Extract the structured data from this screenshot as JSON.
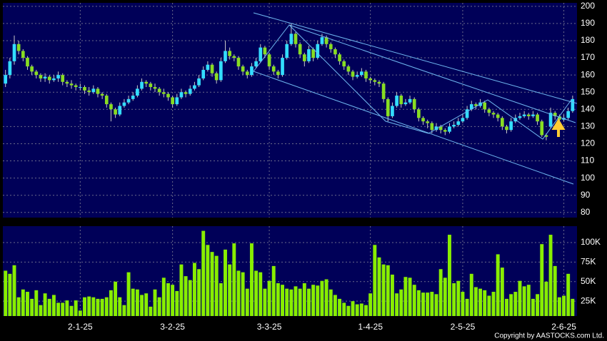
{
  "chart_data": [
    {
      "type": "candlestick",
      "up_color": "#33ddff",
      "down_color": "#88dd22",
      "wick_color": "#c8c8c8",
      "grid": true,
      "xlim": [
        -0.6,
        130
      ],
      "ylim": [
        77,
        202
      ],
      "yticks": [
        80,
        90,
        100,
        110,
        120,
        130,
        140,
        150,
        160,
        170,
        180,
        190,
        200
      ],
      "ohlc": [
        [
          155,
          163,
          153,
          160
        ],
        [
          160,
          170,
          158,
          168
        ],
        [
          168,
          183,
          166,
          178
        ],
        [
          178,
          180,
          172,
          174
        ],
        [
          174,
          175,
          168,
          170
        ],
        [
          170,
          171,
          163,
          165
        ],
        [
          165,
          166,
          160,
          162
        ],
        [
          162,
          163,
          158,
          160
        ],
        [
          160,
          161,
          156,
          158
        ],
        [
          158,
          161,
          156,
          159
        ],
        [
          159,
          160,
          155,
          157
        ],
        [
          157,
          160,
          156,
          158
        ],
        [
          158,
          162,
          156,
          160
        ],
        [
          160,
          161,
          154,
          156
        ],
        [
          156,
          157,
          153,
          155
        ],
        [
          155,
          157,
          152,
          154
        ],
        [
          154,
          155,
          151,
          153
        ],
        [
          153,
          155,
          151,
          153
        ],
        [
          153,
          154,
          149,
          151
        ],
        [
          151,
          153,
          148,
          150
        ],
        [
          150,
          154,
          149,
          152
        ],
        [
          152,
          153,
          147,
          149
        ],
        [
          149,
          150,
          146,
          148
        ],
        [
          148,
          149,
          141,
          143
        ],
        [
          143,
          144,
          133,
          140
        ],
        [
          140,
          141,
          135,
          137
        ],
        [
          137,
          144,
          136,
          142
        ],
        [
          142,
          146,
          141,
          144
        ],
        [
          144,
          148,
          143,
          146
        ],
        [
          146,
          150,
          145,
          148
        ],
        [
          148,
          154,
          147,
          152
        ],
        [
          152,
          158,
          151,
          156
        ],
        [
          156,
          157,
          153,
          155
        ],
        [
          155,
          156,
          151,
          153
        ],
        [
          153,
          155,
          150,
          152
        ],
        [
          152,
          153,
          148,
          150
        ],
        [
          150,
          152,
          147,
          149
        ],
        [
          149,
          150,
          145,
          147
        ],
        [
          147,
          148,
          141,
          143
        ],
        [
          143,
          149,
          142,
          147
        ],
        [
          147,
          152,
          146,
          150
        ],
        [
          150,
          151,
          147,
          149
        ],
        [
          149,
          154,
          148,
          152
        ],
        [
          152,
          156,
          151,
          154
        ],
        [
          154,
          160,
          153,
          158
        ],
        [
          158,
          165,
          157,
          163
        ],
        [
          163,
          168,
          162,
          166
        ],
        [
          166,
          167,
          159,
          161
        ],
        [
          161,
          162,
          155,
          157
        ],
        [
          157,
          170,
          156,
          168
        ],
        [
          168,
          180,
          167,
          174
        ],
        [
          174,
          176,
          169,
          171
        ],
        [
          171,
          172,
          168,
          170
        ],
        [
          170,
          171,
          163,
          165
        ],
        [
          165,
          166,
          160,
          162
        ],
        [
          162,
          163,
          158,
          160
        ],
        [
          160,
          167,
          159,
          165
        ],
        [
          165,
          170,
          164,
          168
        ],
        [
          168,
          178,
          167,
          176
        ],
        [
          176,
          177,
          170,
          172
        ],
        [
          172,
          173,
          163,
          165
        ],
        [
          165,
          166,
          160,
          162
        ],
        [
          162,
          163,
          158,
          160
        ],
        [
          160,
          172,
          159,
          170
        ],
        [
          170,
          180,
          169,
          178
        ],
        [
          178,
          190,
          177,
          184
        ],
        [
          184,
          185,
          176,
          178
        ],
        [
          178,
          179,
          170,
          172
        ],
        [
          172,
          173,
          165,
          168
        ],
        [
          168,
          177,
          167,
          175
        ],
        [
          175,
          176,
          168,
          170
        ],
        [
          170,
          180,
          169,
          178
        ],
        [
          178,
          184,
          177,
          182
        ],
        [
          182,
          183,
          176,
          178
        ],
        [
          178,
          179,
          173,
          175
        ],
        [
          175,
          176,
          170,
          172
        ],
        [
          172,
          173,
          166,
          168
        ],
        [
          168,
          169,
          163,
          165
        ],
        [
          165,
          166,
          160,
          162
        ],
        [
          162,
          163,
          157,
          159
        ],
        [
          159,
          162,
          158,
          160
        ],
        [
          160,
          164,
          159,
          162
        ],
        [
          162,
          163,
          156,
          158
        ],
        [
          158,
          159,
          155,
          157
        ],
        [
          157,
          158,
          154,
          156
        ],
        [
          156,
          157,
          153,
          155
        ],
        [
          155,
          156,
          144,
          146
        ],
        [
          146,
          147,
          133,
          136
        ],
        [
          136,
          144,
          135,
          142
        ],
        [
          142,
          150,
          141,
          148
        ],
        [
          148,
          149,
          141,
          143
        ],
        [
          143,
          146,
          142,
          144
        ],
        [
          144,
          148,
          143,
          146
        ],
        [
          146,
          147,
          138,
          140
        ],
        [
          140,
          141,
          133,
          135
        ],
        [
          135,
          136,
          131,
          133
        ],
        [
          133,
          134,
          129,
          132
        ],
        [
          132,
          133,
          126,
          128
        ],
        [
          128,
          132,
          127,
          130
        ],
        [
          130,
          131,
          126,
          128
        ],
        [
          128,
          129,
          125,
          127
        ],
        [
          127,
          132,
          126,
          130
        ],
        [
          130,
          133,
          129,
          131
        ],
        [
          131,
          135,
          130,
          133
        ],
        [
          133,
          137,
          132,
          135
        ],
        [
          135,
          142,
          134,
          140
        ],
        [
          140,
          145,
          139,
          143
        ],
        [
          143,
          144,
          140,
          142
        ],
        [
          142,
          146,
          141,
          144
        ],
        [
          144,
          145,
          138,
          140
        ],
        [
          140,
          141,
          136,
          138
        ],
        [
          138,
          139,
          135,
          137
        ],
        [
          137,
          138,
          133,
          135
        ],
        [
          135,
          136,
          128,
          130
        ],
        [
          130,
          131,
          126,
          128
        ],
        [
          128,
          135,
          127,
          133
        ],
        [
          133,
          137,
          132,
          135
        ],
        [
          135,
          138,
          134,
          136
        ],
        [
          136,
          139,
          135,
          137
        ],
        [
          137,
          138,
          134,
          136
        ],
        [
          136,
          139,
          135,
          137
        ],
        [
          137,
          138,
          131,
          133
        ],
        [
          133,
          134,
          124,
          125
        ],
        [
          125,
          126,
          122,
          124
        ],
        [
          130,
          141,
          129,
          138
        ],
        [
          138,
          139,
          134,
          136
        ],
        [
          136,
          137,
          132,
          134
        ],
        [
          134,
          137,
          133,
          135
        ],
        [
          135,
          141,
          134,
          139
        ],
        [
          139,
          148,
          138,
          146
        ]
      ]
    },
    {
      "type": "bar",
      "color": "#88ee00",
      "grid": true,
      "xlim": [
        -0.6,
        130
      ],
      "ylim": [
        6,
        121
      ],
      "yticks": [
        {
          "value": 25,
          "label": "25K"
        },
        {
          "value": 50,
          "label": "50K"
        },
        {
          "value": 75,
          "label": "75K"
        },
        {
          "value": 100,
          "label": "100K"
        }
      ],
      "xticks": [
        {
          "value": 17,
          "label": "2-1-25"
        },
        {
          "value": 38,
          "label": "3-2-25"
        },
        {
          "value": 60,
          "label": "3-3-25"
        },
        {
          "value": 83,
          "label": "1-4-25"
        },
        {
          "value": 104,
          "label": "2-5-25"
        },
        {
          "value": 127,
          "label": "2-6-25"
        }
      ],
      "values": [
        64,
        60,
        71,
        30,
        40,
        37,
        28,
        39,
        20,
        35,
        28,
        33,
        23,
        23,
        26,
        19,
        26,
        13,
        30,
        31,
        30,
        28,
        28,
        30,
        39,
        50,
        30,
        20,
        62,
        41,
        40,
        33,
        35,
        18,
        40,
        30,
        55,
        48,
        46,
        38,
        72,
        57,
        52,
        74,
        66,
        115,
        97,
        88,
        83,
        48,
        91,
        72,
        99,
        64,
        62,
        41,
        99,
        64,
        62,
        41,
        51,
        70,
        48,
        46,
        41,
        40,
        44,
        41,
        48,
        41,
        46,
        45,
        51,
        53,
        40,
        33,
        28,
        23,
        19,
        25,
        21,
        22,
        20,
        35,
        97,
        81,
        72,
        71,
        59,
        35,
        40,
        56,
        55,
        46,
        39,
        36,
        36,
        37,
        34,
        66,
        55,
        110,
        48,
        51,
        37,
        28,
        60,
        43,
        41,
        39,
        32,
        37,
        85,
        68,
        28,
        34,
        37,
        51,
        44,
        46,
        28,
        34,
        98,
        50,
        110,
        70,
        30,
        32,
        60,
        28
      ]
    }
  ],
  "footer": "Copyright by AASTOCKS.com Ltd."
}
